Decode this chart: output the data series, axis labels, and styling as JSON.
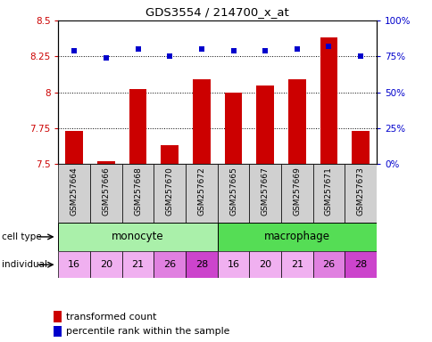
{
  "title": "GDS3554 / 214700_x_at",
  "samples": [
    "GSM257664",
    "GSM257666",
    "GSM257668",
    "GSM257670",
    "GSM257672",
    "GSM257665",
    "GSM257667",
    "GSM257669",
    "GSM257671",
    "GSM257673"
  ],
  "bar_values": [
    7.73,
    7.52,
    8.02,
    7.63,
    8.09,
    8.0,
    8.05,
    8.09,
    8.38,
    7.73
  ],
  "dot_values": [
    79,
    74,
    80,
    75,
    80,
    79,
    79,
    80,
    82,
    75
  ],
  "individuals": [
    "16",
    "20",
    "21",
    "26",
    "28",
    "16",
    "20",
    "21",
    "26",
    "28"
  ],
  "monocyte_color": "#aaf0aa",
  "macrophage_color": "#55dd55",
  "ind_color_light": "#f0b0f0",
  "ind_color_dark": "#dd66dd",
  "bar_color": "#cc0000",
  "dot_color": "#0000cc",
  "bar_bottom": 7.5,
  "ylim_left": [
    7.5,
    8.5
  ],
  "ylim_right": [
    0,
    100
  ],
  "yticks_left": [
    7.5,
    7.75,
    8.0,
    8.25,
    8.5
  ],
  "ytick_labels_left": [
    "7.5",
    "7.75",
    "8",
    "8.25",
    "8.5"
  ],
  "yticks_right": [
    0,
    25,
    50,
    75,
    100
  ],
  "ytick_labels_right": [
    "0%",
    "25%",
    "50%",
    "75%",
    "100%"
  ],
  "hlines": [
    7.75,
    8.0,
    8.25
  ],
  "tick_color_left": "#cc0000",
  "tick_color_right": "#0000cc",
  "legend_bar_label": "transformed count",
  "legend_dot_label": "percentile rank within the sample",
  "gray_bg": "#d0d0d0"
}
